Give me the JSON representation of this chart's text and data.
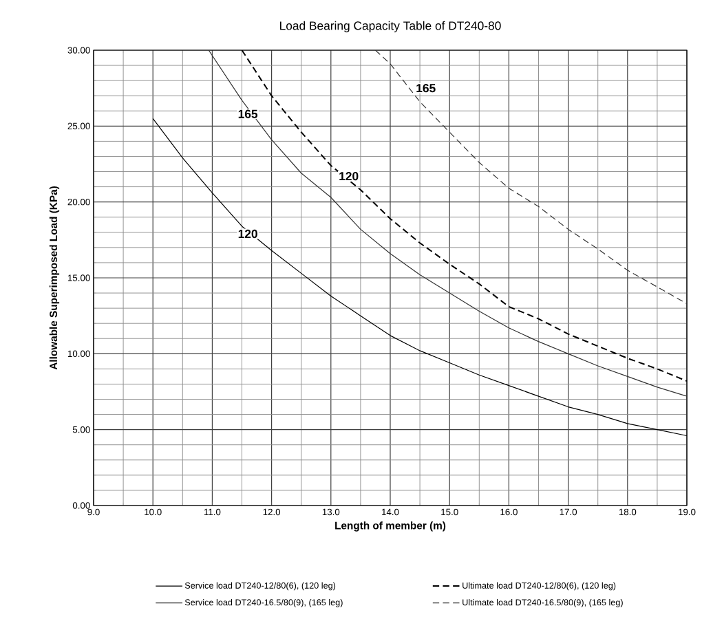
{
  "chart_data": {
    "type": "line",
    "title": "Load Bearing Capacity Table of DT240-80",
    "xlabel": "Length of member (m)",
    "ylabel": "Allowable  Superimposed Load (KPa)",
    "xlim": [
      9,
      19
    ],
    "ylim": [
      0,
      30
    ],
    "xticks": [
      {
        "value": 9,
        "label": "9.0"
      },
      {
        "value": 10,
        "label": "10.0"
      },
      {
        "value": 11,
        "label": "11.0"
      },
      {
        "value": 12,
        "label": "12.0"
      },
      {
        "value": 13,
        "label": "13.0"
      },
      {
        "value": 14,
        "label": "14.0"
      },
      {
        "value": 15,
        "label": "15.0"
      },
      {
        "value": 16,
        "label": "16.0"
      },
      {
        "value": 17,
        "label": "17.0"
      },
      {
        "value": 18,
        "label": "18.0"
      },
      {
        "value": 19,
        "label": "19.0"
      }
    ],
    "yticks": [
      {
        "value": 0,
        "label": "0.00"
      },
      {
        "value": 5,
        "label": "5.00"
      },
      {
        "value": 10,
        "label": "10.00"
      },
      {
        "value": 15,
        "label": "15.00"
      },
      {
        "value": 20,
        "label": "20.00"
      },
      {
        "value": 25,
        "label": "25.00"
      },
      {
        "value": 30,
        "label": "30.00"
      }
    ],
    "grid": true,
    "legend": "bottom",
    "marker": "none",
    "series": [
      {
        "name": "Service load DT240-12/80(6), (120 leg)",
        "color": "#000000",
        "line_style": "solid",
        "x": [
          10,
          10.5,
          11,
          11.5,
          12,
          12.5,
          13,
          13.5,
          14,
          14.5,
          15,
          15.5,
          16,
          16.5,
          17,
          17.5,
          18,
          18.5,
          19
        ],
        "values": [
          25.5,
          22.9,
          20.6,
          18.4,
          16.8,
          15.3,
          13.8,
          12.5,
          11.2,
          10.2,
          9.4,
          8.6,
          7.9,
          7.2,
          6.5,
          6.0,
          5.4,
          5.0,
          4.6
        ]
      },
      {
        "name": "Ultimate load DT240-12/80(6), (120 leg)",
        "color": "#000000",
        "line_style": "dashed",
        "x": [
          11.5,
          12,
          12.5,
          13,
          13.5,
          14,
          14.5,
          15,
          15.5,
          16,
          16.5,
          17,
          17.5,
          18,
          18.5,
          19
        ],
        "values": [
          30.0,
          27.0,
          24.6,
          22.4,
          20.8,
          18.9,
          17.3,
          15.9,
          14.6,
          13.1,
          12.3,
          11.3,
          10.5,
          9.7,
          9.0,
          8.2
        ]
      },
      {
        "name": "Service load DT240-16.5/80(9), (165 leg)",
        "color": "#333333",
        "line_style": "solid",
        "x": [
          10.94,
          11.5,
          12,
          12.5,
          13,
          13.5,
          14,
          14.5,
          15,
          15.5,
          16,
          16.5,
          17,
          17.5,
          18,
          18.5,
          19
        ],
        "values": [
          30.0,
          26.7,
          24.1,
          21.9,
          20.3,
          18.2,
          16.6,
          15.2,
          14.0,
          12.8,
          11.7,
          10.8,
          10.0,
          9.2,
          8.5,
          7.8,
          7.2
        ]
      },
      {
        "name": "Ultimate load DT240-16.5/80(9), (165 leg)",
        "color": "#333333",
        "line_style": "dashed",
        "x": [
          13.75,
          14,
          14.5,
          15,
          15.5,
          16,
          16.5,
          17,
          17.5,
          18,
          18.5,
          19
        ],
        "values": [
          30.0,
          29.1,
          26.6,
          24.6,
          22.6,
          20.9,
          19.7,
          18.2,
          16.9,
          15.5,
          14.4,
          13.3
        ]
      }
    ],
    "annotations": [
      {
        "text": "165",
        "x": 11.6,
        "y": 25.8
      },
      {
        "text": "120",
        "x": 11.6,
        "y": 17.9
      },
      {
        "text": "120",
        "x": 13.3,
        "y": 21.7
      },
      {
        "text": "165",
        "x": 14.6,
        "y": 27.5
      }
    ]
  }
}
